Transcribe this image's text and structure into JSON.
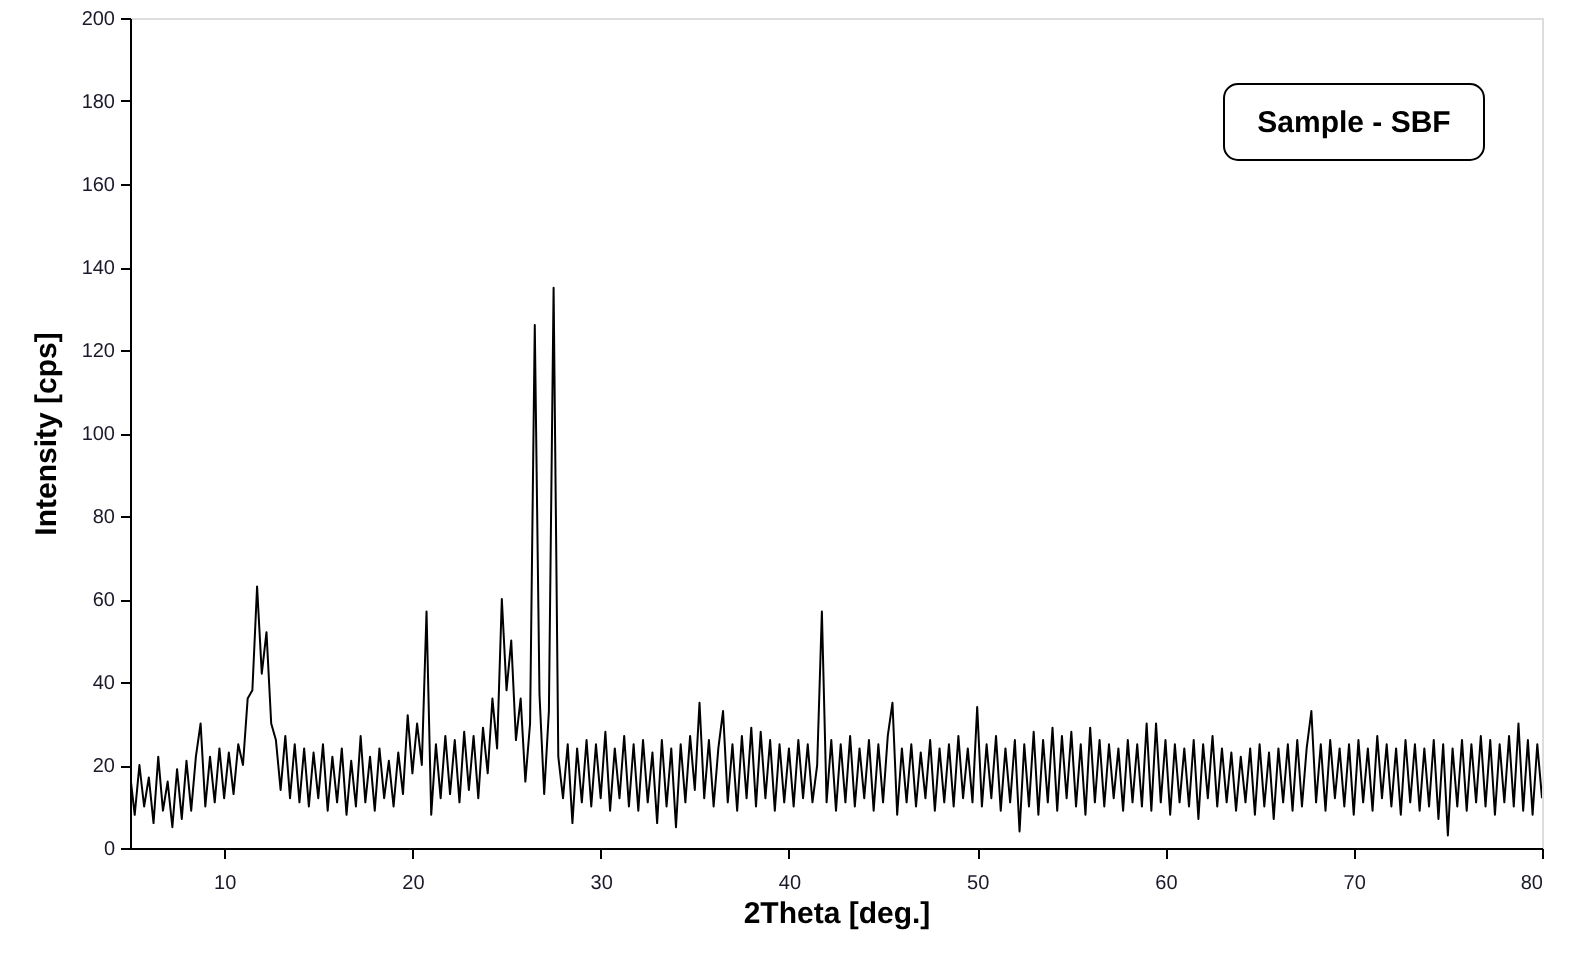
{
  "chart_data": {
    "type": "line",
    "xlabel": "2Theta [deg.]",
    "ylabel": "Intensity [cps]",
    "annotations": [
      "Sample - SBF"
    ],
    "xlim": [
      5,
      80
    ],
    "xticks": [
      10,
      20,
      30,
      40,
      50,
      60,
      70,
      80
    ],
    "ylim": [
      0,
      200
    ],
    "yticks": [
      0,
      20,
      40,
      60,
      80,
      100,
      120,
      140,
      160,
      180,
      200
    ],
    "grid": false,
    "line_style": "solid",
    "x": [
      5,
      5.25,
      5.5,
      5.75,
      6,
      6.25,
      6.5,
      6.75,
      7,
      7.25,
      7.5,
      7.75,
      8,
      8.25,
      8.5,
      8.75,
      9,
      9.25,
      9.5,
      9.75,
      10,
      10.25,
      10.5,
      10.75,
      11,
      11.25,
      11.5,
      11.75,
      12,
      12.25,
      12.5,
      12.75,
      13,
      13.25,
      13.5,
      13.75,
      14,
      14.25,
      14.5,
      14.75,
      15,
      15.25,
      15.5,
      15.75,
      16,
      16.25,
      16.5,
      16.75,
      17,
      17.25,
      17.5,
      17.75,
      18,
      18.25,
      18.5,
      18.75,
      19,
      19.25,
      19.5,
      19.75,
      20,
      20.25,
      20.5,
      20.75,
      21,
      21.25,
      21.5,
      21.75,
      22,
      22.25,
      22.5,
      22.75,
      23,
      23.25,
      23.5,
      23.75,
      24,
      24.25,
      24.5,
      24.75,
      25,
      25.25,
      25.5,
      25.75,
      26,
      26.25,
      26.5,
      26.75,
      27,
      27.25,
      27.5,
      27.75,
      28,
      28.25,
      28.5,
      28.75,
      29,
      29.25,
      29.5,
      29.75,
      30,
      30.25,
      30.5,
      30.75,
      31,
      31.25,
      31.5,
      31.75,
      32,
      32.25,
      32.5,
      32.75,
      33,
      33.25,
      33.5,
      33.75,
      34,
      34.25,
      34.5,
      34.75,
      35,
      35.25,
      35.5,
      35.75,
      36,
      36.25,
      36.5,
      36.75,
      37,
      37.25,
      37.5,
      37.75,
      38,
      38.25,
      38.5,
      38.75,
      39,
      39.25,
      39.5,
      39.75,
      40,
      40.25,
      40.5,
      40.75,
      41,
      41.25,
      41.5,
      41.75,
      42,
      42.25,
      42.5,
      42.75,
      43,
      43.25,
      43.5,
      43.75,
      44,
      44.25,
      44.5,
      44.75,
      45,
      45.25,
      45.5,
      45.75,
      46,
      46.25,
      46.5,
      46.75,
      47,
      47.25,
      47.5,
      47.75,
      48,
      48.25,
      48.5,
      48.75,
      49,
      49.25,
      49.5,
      49.75,
      50,
      50.25,
      50.5,
      50.75,
      51,
      51.25,
      51.5,
      51.75,
      52,
      52.25,
      52.5,
      52.75,
      53,
      53.25,
      53.5,
      53.75,
      54,
      54.25,
      54.5,
      54.75,
      55,
      55.25,
      55.5,
      55.75,
      56,
      56.25,
      56.5,
      56.75,
      57,
      57.25,
      57.5,
      57.75,
      58,
      58.25,
      58.5,
      58.75,
      59,
      59.25,
      59.5,
      59.75,
      60,
      60.25,
      60.5,
      60.75,
      61,
      61.25,
      61.5,
      61.75,
      62,
      62.25,
      62.5,
      62.75,
      63,
      63.25,
      63.5,
      63.75,
      64,
      64.25,
      64.5,
      64.75,
      65,
      65.25,
      65.5,
      65.75,
      66,
      66.25,
      66.5,
      66.75,
      67,
      67.25,
      67.5,
      67.75,
      68,
      68.25,
      68.5,
      68.75,
      69,
      69.25,
      69.5,
      69.75,
      70,
      70.25,
      70.5,
      70.75,
      71,
      71.25,
      71.5,
      71.75,
      72,
      72.25,
      72.5,
      72.75,
      73,
      73.25,
      73.5,
      73.75,
      74,
      74.25,
      74.5,
      74.75,
      75,
      75.25,
      75.5,
      75.75,
      76,
      76.25,
      76.5,
      76.75,
      77,
      77.25,
      77.5,
      77.75,
      78,
      78.25,
      78.5,
      78.75,
      79,
      79.25,
      79.5,
      79.75,
      80
    ],
    "series": [
      {
        "color": "#000000",
        "values": [
          18,
          8,
          20,
          10,
          17,
          6,
          22,
          9,
          16,
          5,
          19,
          7,
          21,
          9,
          22,
          30,
          10,
          22,
          11,
          24,
          12,
          23,
          13,
          25,
          20,
          36,
          38,
          63,
          42,
          52,
          30,
          26,
          14,
          27,
          12,
          25,
          11,
          24,
          10,
          23,
          12,
          25,
          9,
          22,
          11,
          24,
          8,
          21,
          10,
          27,
          11,
          22,
          9,
          24,
          12,
          21,
          10,
          23,
          13,
          32,
          18,
          30,
          20,
          57,
          8,
          25,
          12,
          27,
          13,
          26,
          11,
          28,
          14,
          27,
          12,
          29,
          18,
          36,
          24,
          60,
          38,
          50,
          26,
          36,
          16,
          30,
          126,
          37,
          13,
          33,
          135,
          22,
          12,
          25,
          6,
          24,
          11,
          26,
          10,
          25,
          12,
          28,
          9,
          24,
          12,
          27,
          10,
          25,
          9,
          26,
          11,
          23,
          6,
          26,
          10,
          24,
          5,
          25,
          11,
          27,
          14,
          35,
          12,
          26,
          10,
          24,
          33,
          11,
          25,
          9,
          27,
          12,
          29,
          10,
          28,
          12,
          26,
          9,
          25,
          11,
          24,
          10,
          26,
          12,
          25,
          11,
          20,
          57,
          11,
          26,
          9,
          25,
          11,
          27,
          10,
          24,
          12,
          26,
          9,
          25,
          11,
          27,
          35,
          8,
          24,
          11,
          25,
          10,
          23,
          12,
          26,
          9,
          24,
          11,
          25,
          10,
          27,
          12,
          24,
          11,
          34,
          10,
          25,
          12,
          27,
          9,
          24,
          11,
          26,
          4,
          25,
          10,
          28,
          8,
          26,
          11,
          29,
          9,
          27,
          12,
          28,
          10,
          25,
          8,
          29,
          11,
          26,
          10,
          25,
          12,
          24,
          9,
          26,
          11,
          25,
          10,
          30,
          9,
          30,
          11,
          26,
          8,
          25,
          11,
          24,
          10,
          26,
          7,
          25,
          12,
          27,
          10,
          24,
          11,
          23,
          9,
          22,
          11,
          24,
          8,
          25,
          10,
          23,
          7,
          24,
          11,
          25,
          9,
          26,
          10,
          24,
          33,
          11,
          25,
          9,
          26,
          12,
          24,
          10,
          25,
          8,
          26,
          11,
          24,
          9,
          27,
          12,
          25,
          10,
          24,
          8,
          26,
          11,
          25,
          9,
          24,
          10,
          26,
          7,
          25,
          3,
          24,
          10,
          26,
          9,
          25,
          11,
          27,
          10,
          26,
          8,
          25,
          11,
          27,
          10,
          30,
          9,
          26,
          8,
          25,
          12
        ]
      }
    ]
  }
}
